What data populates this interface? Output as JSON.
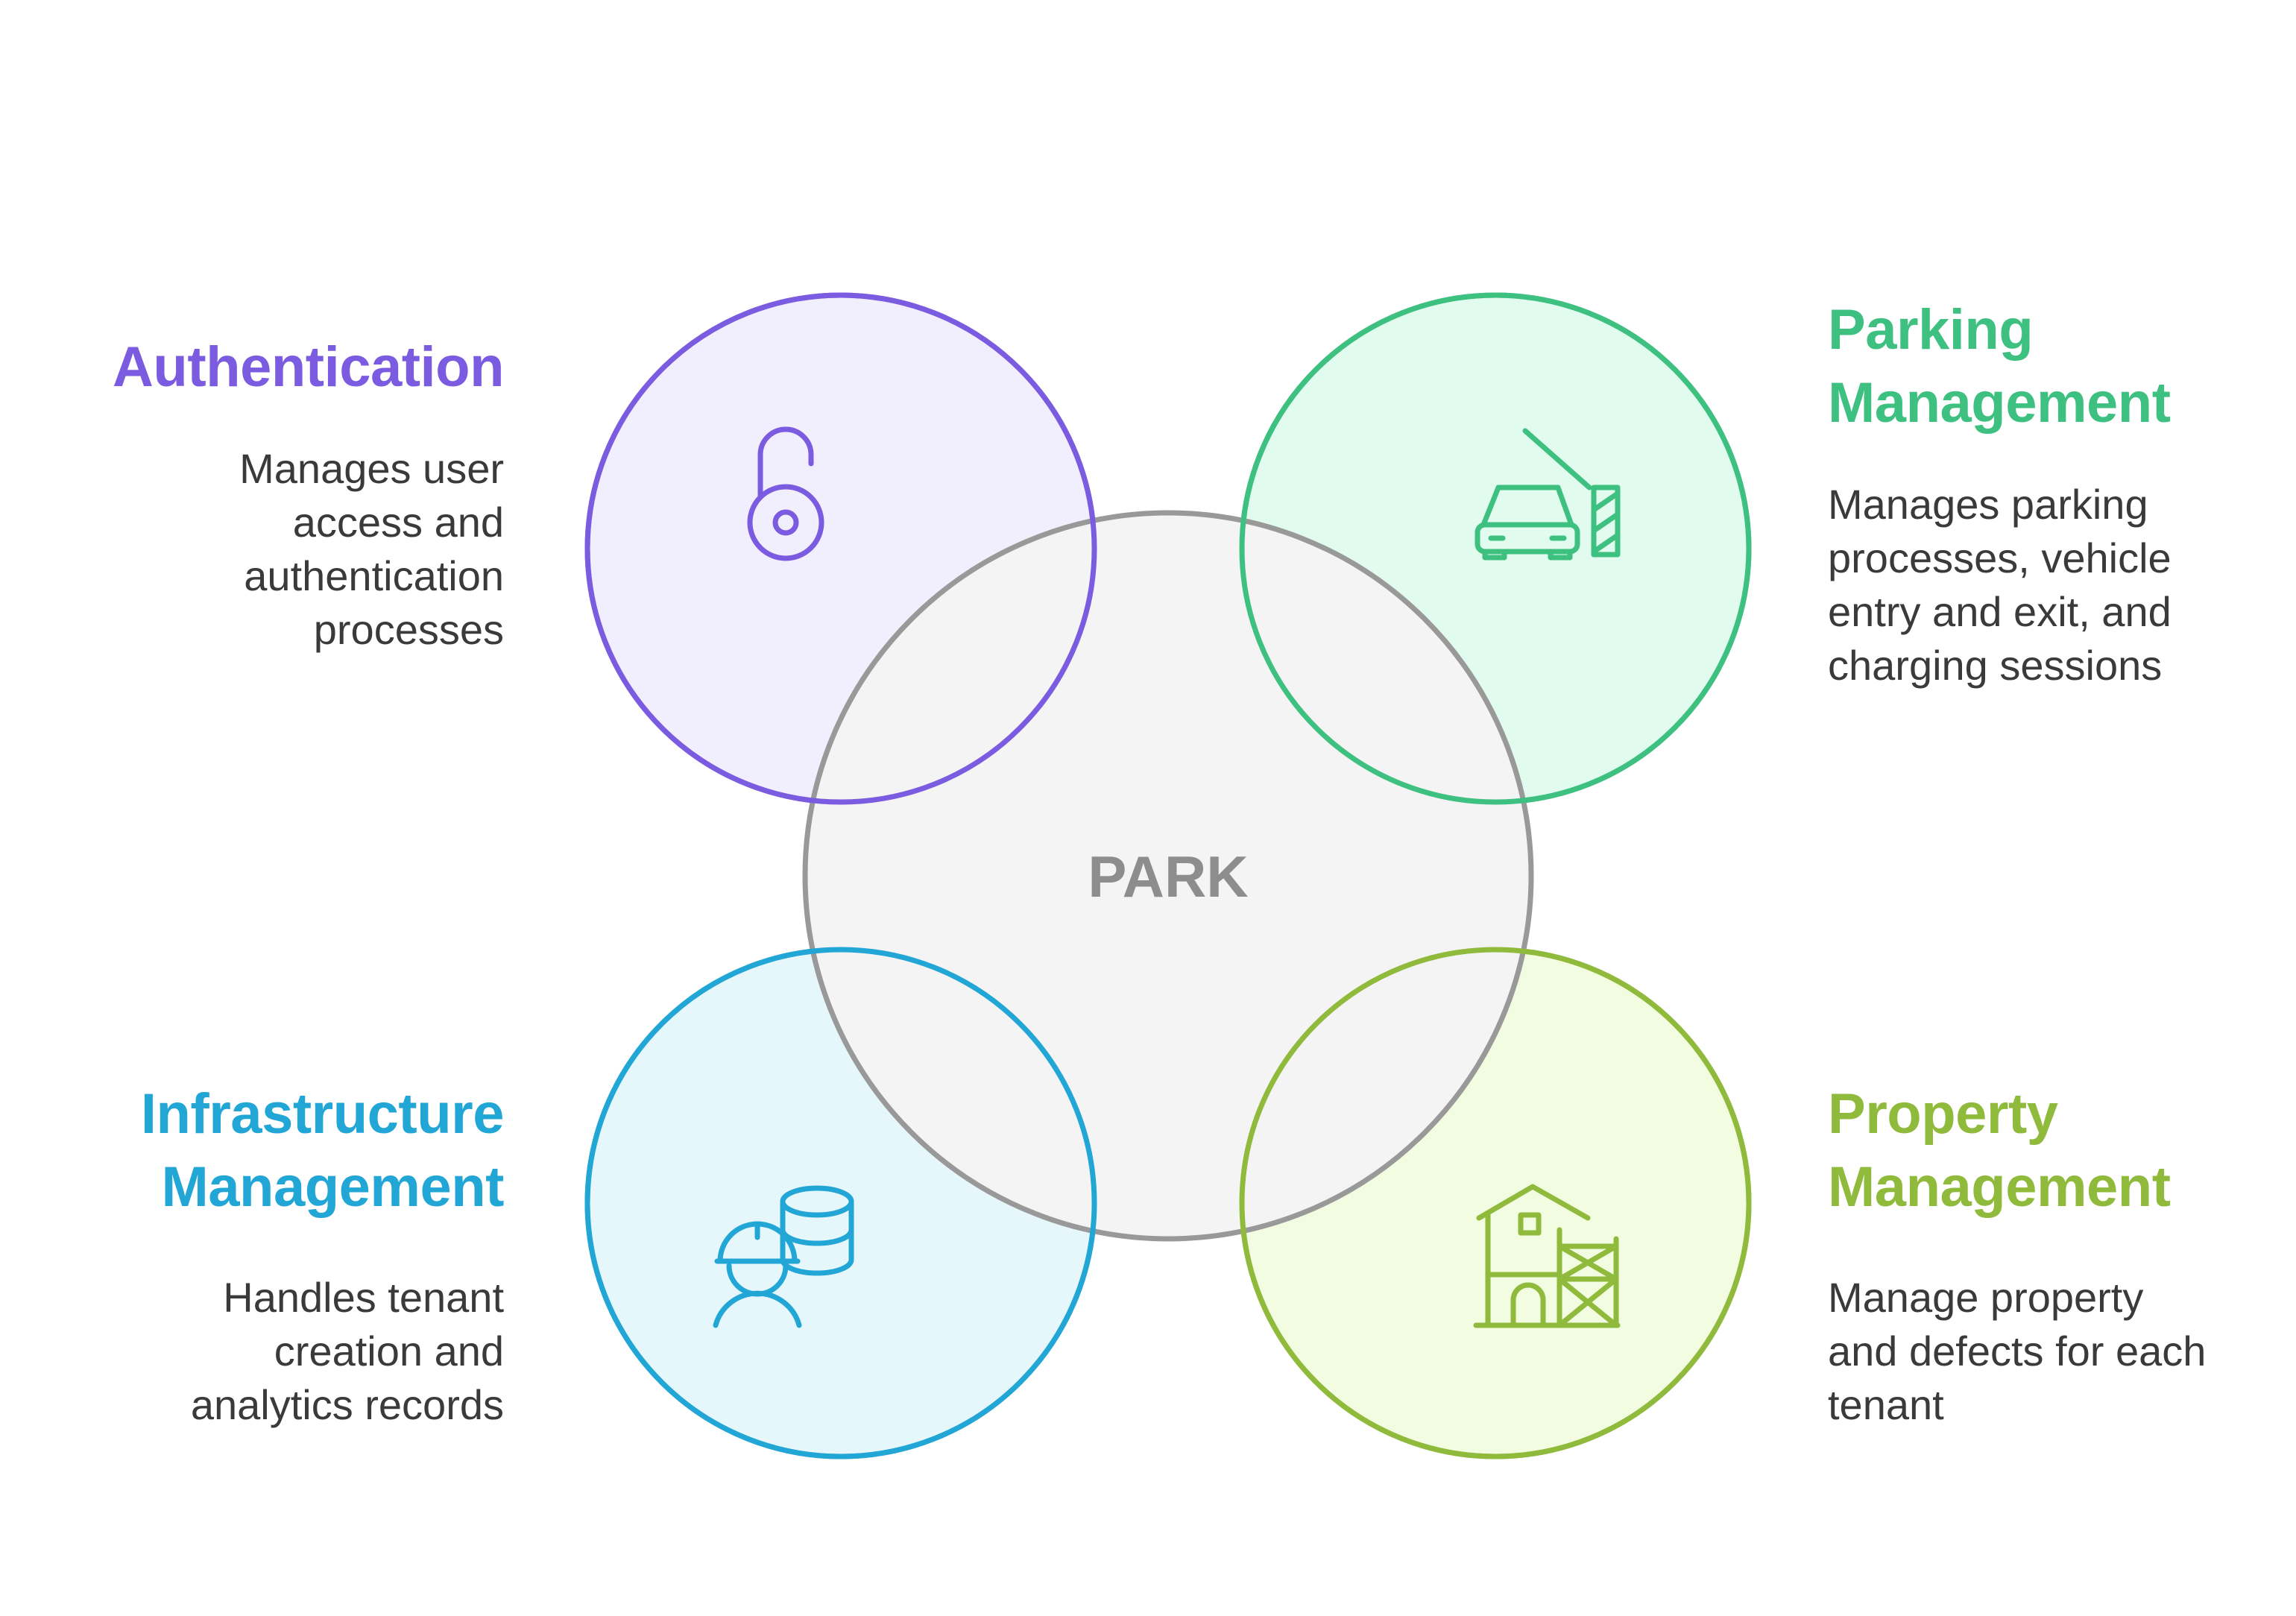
{
  "center": {
    "label": "PARK",
    "fill": "#f4f4f4",
    "stroke": "#999999"
  },
  "sections": {
    "authentication": {
      "title_lines": [
        "Authentication"
      ],
      "description_lines": [
        "Manages user",
        "access and",
        "authentication",
        "processes"
      ],
      "color": "#7b5ce1",
      "fill": "#f1effd",
      "icon": "open-padlock-icon"
    },
    "parking": {
      "title_lines": [
        "Parking",
        "Management"
      ],
      "description_lines": [
        "Manages parking",
        "processes, vehicle",
        "entry and exit, and",
        "charging sessions"
      ],
      "color": "#3ec080",
      "fill": "#e1fbef",
      "icon": "car-barrier-icon"
    },
    "infrastructure": {
      "title_lines": [
        "Infrastructure",
        "Management"
      ],
      "description_lines": [
        "Handles tenant",
        "creation and",
        "analytics records"
      ],
      "color": "#22a6d6",
      "fill": "#e6f7fc",
      "icon": "engineer-database-icon"
    },
    "property": {
      "title_lines": [
        "Property",
        "Management"
      ],
      "description_lines": [
        "Manage property",
        "and defects for each",
        "tenant"
      ],
      "color": "#8fba3c",
      "fill": "#f2fce1",
      "icon": "house-scaffold-icon"
    }
  }
}
